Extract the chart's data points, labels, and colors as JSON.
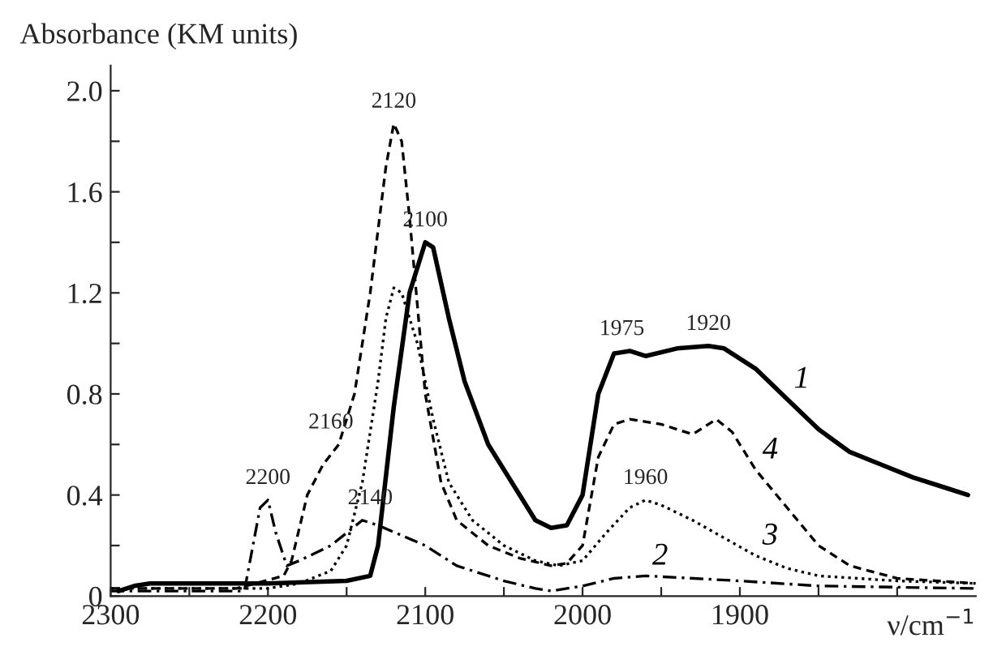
{
  "chart_data": {
    "type": "line",
    "xlabel": "ν/cm$^{−1}$",
    "ylabel": "Absorbance (KM units)",
    "xlim": [
      2300,
      1750
    ],
    "ylim": [
      0,
      2.1
    ],
    "xticks": [
      2300,
      {
        "value": 2250,
        "label": null
      },
      2200,
      {
        "value": 2150,
        "label": null
      },
      2100,
      {
        "value": 2050,
        "label": null
      },
      2000,
      {
        "value": 1950,
        "label": null
      },
      1900,
      {
        "value": 1850,
        "label": null
      },
      {
        "value": 1800,
        "label": null
      }
    ],
    "yticks": [
      0,
      {
        "value": 0.2,
        "label": null
      },
      0.4,
      {
        "value": 0.6,
        "label": null
      },
      0.8,
      {
        "value": 1.0,
        "label": null
      },
      1.2,
      {
        "value": 1.4,
        "label": null
      },
      1.6,
      {
        "value": 1.8,
        "label": null
      },
      {
        "value": 2.0,
        "label": "2.0"
      }
    ],
    "grid": false,
    "legend": false,
    "series": [
      {
        "name": "1",
        "color": "#000000",
        "line_style": "solid",
        "x": [
          2295,
          2285,
          2275,
          2200,
          2150,
          2135,
          2130,
          2120,
          2110,
          2100,
          2095,
          2085,
          2075,
          2060,
          2045,
          2030,
          2020,
          2010,
          2000,
          1990,
          1980,
          1970,
          1960,
          1940,
          1920,
          1910,
          1890,
          1870,
          1850,
          1830,
          1810,
          1790,
          1770,
          1755
        ],
        "values": [
          0.02,
          0.04,
          0.05,
          0.05,
          0.06,
          0.08,
          0.2,
          0.75,
          1.2,
          1.4,
          1.38,
          1.1,
          0.85,
          0.6,
          0.45,
          0.3,
          0.27,
          0.28,
          0.4,
          0.8,
          0.96,
          0.97,
          0.95,
          0.98,
          0.99,
          0.98,
          0.9,
          0.78,
          0.66,
          0.57,
          0.52,
          0.47,
          0.43,
          0.4
        ]
      },
      {
        "name": "2",
        "color": "#000000",
        "line_style": "dashdot",
        "x": [
          2300,
          2215,
          2205,
          2200,
          2195,
          2188,
          2180,
          2160,
          2150,
          2140,
          2130,
          2100,
          2080,
          2050,
          2030,
          2020,
          2000,
          1980,
          1960,
          1900,
          1850,
          1750
        ],
        "values": [
          0.02,
          0.02,
          0.35,
          0.38,
          0.25,
          0.12,
          0.14,
          0.2,
          0.25,
          0.3,
          0.28,
          0.2,
          0.12,
          0.06,
          0.03,
          0.02,
          0.04,
          0.07,
          0.08,
          0.06,
          0.04,
          0.03
        ]
      },
      {
        "name": "3",
        "color": "#000000",
        "line_style": "dotted",
        "x": [
          2300,
          2200,
          2180,
          2160,
          2150,
          2140,
          2130,
          2125,
          2120,
          2115,
          2105,
          2095,
          2085,
          2070,
          2050,
          2030,
          2015,
          2000,
          1985,
          1970,
          1960,
          1950,
          1930,
          1910,
          1890,
          1870,
          1850,
          1800,
          1750
        ],
        "values": [
          0.03,
          0.03,
          0.05,
          0.1,
          0.2,
          0.45,
          0.85,
          1.1,
          1.22,
          1.2,
          1.0,
          0.7,
          0.45,
          0.3,
          0.2,
          0.14,
          0.12,
          0.14,
          0.25,
          0.35,
          0.38,
          0.36,
          0.3,
          0.23,
          0.16,
          0.11,
          0.08,
          0.06,
          0.05
        ]
      },
      {
        "name": "4",
        "color": "#000000",
        "line_style": "dashed",
        "x": [
          2300,
          2220,
          2190,
          2185,
          2175,
          2165,
          2155,
          2145,
          2135,
          2125,
          2120,
          2115,
          2110,
          2100,
          2090,
          2080,
          2060,
          2040,
          2020,
          2010,
          2000,
          1990,
          1980,
          1970,
          1950,
          1930,
          1920,
          1915,
          1905,
          1890,
          1870,
          1850,
          1830,
          1800,
          1750
        ],
        "values": [
          0.03,
          0.03,
          0.08,
          0.14,
          0.4,
          0.52,
          0.6,
          0.8,
          1.2,
          1.7,
          1.87,
          1.8,
          1.5,
          0.8,
          0.45,
          0.3,
          0.2,
          0.15,
          0.12,
          0.13,
          0.2,
          0.55,
          0.68,
          0.7,
          0.68,
          0.64,
          0.68,
          0.7,
          0.65,
          0.5,
          0.35,
          0.2,
          0.12,
          0.07,
          0.05
        ]
      }
    ],
    "annotations": [
      {
        "text": "2120",
        "x": 2120,
        "y": 1.87
      },
      {
        "text": "2100",
        "x": 2100,
        "y": 1.4
      },
      {
        "text": "1975",
        "x": 1975,
        "y": 0.97
      },
      {
        "text": "1920",
        "x": 1920,
        "y": 0.99
      },
      {
        "text": "1960",
        "x": 1960,
        "y": 0.38
      },
      {
        "text": "2200",
        "x": 2200,
        "y": 0.38
      },
      {
        "text": "2160",
        "x": 2160,
        "y": 0.6
      },
      {
        "text": "2140",
        "x": 2135,
        "y": 0.3
      }
    ]
  }
}
